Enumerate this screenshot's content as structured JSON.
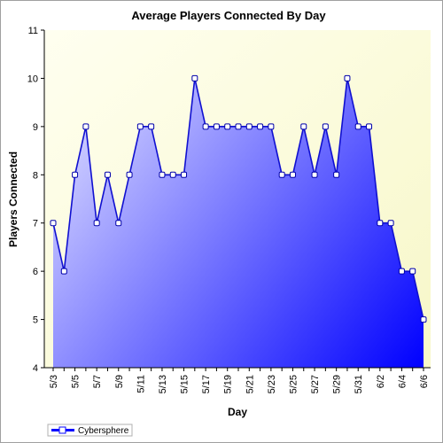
{
  "chart_data": {
    "type": "area",
    "title": "Average Players Connected By Day",
    "xlabel": "Day",
    "ylabel": "Players Connected",
    "ylim": [
      4,
      11
    ],
    "yticks": [
      4,
      5,
      6,
      7,
      8,
      9,
      10,
      11
    ],
    "grid": false,
    "legend_position": "bottom-left",
    "x": [
      "5/3",
      "5/4",
      "5/5",
      "5/6",
      "5/7",
      "5/8",
      "5/9",
      "5/10",
      "5/11",
      "5/12",
      "5/13",
      "5/14",
      "5/15",
      "5/16",
      "5/17",
      "5/18",
      "5/19",
      "5/20",
      "5/21",
      "5/22",
      "5/23",
      "5/24",
      "5/25",
      "5/26",
      "5/27",
      "5/28",
      "5/29",
      "5/30",
      "5/31",
      "6/1",
      "6/2",
      "6/3",
      "6/4",
      "6/5",
      "6/6"
    ],
    "xtick_labels": [
      "5/3",
      "5/5",
      "5/7",
      "5/9",
      "5/11",
      "5/13",
      "5/15",
      "5/17",
      "5/19",
      "5/21",
      "5/23",
      "5/25",
      "5/27",
      "5/29",
      "5/31",
      "6/2",
      "6/4",
      "6/6"
    ],
    "series": [
      {
        "name": "Cybersphere",
        "color": "#0000ff",
        "values": [
          7,
          6,
          8,
          9,
          7,
          8,
          7,
          8,
          9,
          9,
          8,
          8,
          8,
          10,
          9,
          9,
          9,
          9,
          9,
          9,
          9,
          8,
          8,
          9,
          8,
          9,
          8,
          10,
          9,
          9,
          7,
          7,
          6,
          6,
          5
        ]
      }
    ],
    "colors": {
      "plot_background": "#fdfdd8",
      "fill_light": "#e6e6ff",
      "fill_dark": "#0000ff",
      "line": "#1010d0"
    }
  }
}
